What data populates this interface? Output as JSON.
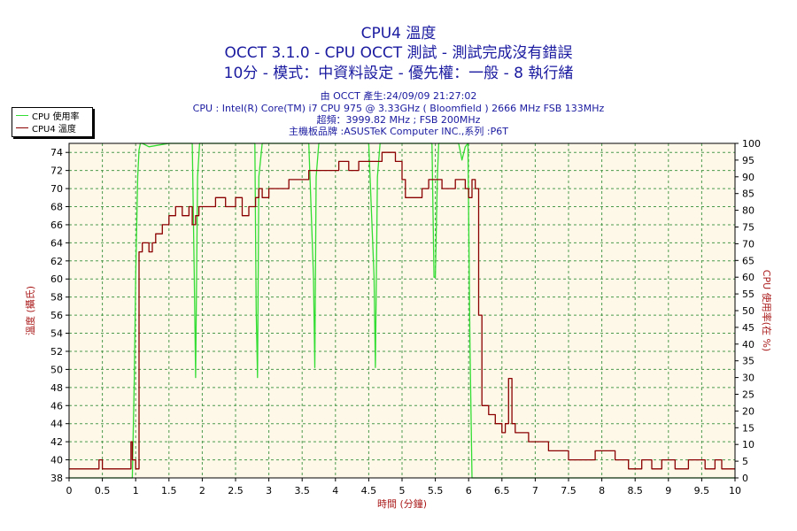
{
  "header": {
    "title": "CPU4 溫度",
    "subtitle1": "OCCT 3.1.0 - CPU OCCT 測試 - 測試完成沒有錯誤",
    "subtitle2": "10分 - 模式：中資料設定 - 優先權：一般 - 8 執行緒",
    "info1": "由 OCCT 產生:24/09/09 21:27:02",
    "info2": "CPU : Intel(R) Core(TM) i7 CPU 975 @ 3.33GHz ( Bloomfield ) 2666 MHz FSB 133MHz",
    "info3": "超頻：3999.82 MHz ; FSB 200MHz",
    "info4": "主機板品牌 :ASUSTeK Computer INC.,系列 :P6T"
  },
  "colors": {
    "cpu_usage": "#33dd33",
    "temperature": "#8b0000",
    "plot_bg": "#fdf8e8",
    "grid": "#4d9a4d",
    "title": "#1a1aa0",
    "axis_title": "#aa1a1a"
  },
  "chart_data": {
    "type": "line",
    "xlabel": "時間 (分鐘)",
    "ylabel_left": "溫度 (攝氏)",
    "ylabel_right": "CPU 使用率(在 %)",
    "xlim": [
      0,
      10
    ],
    "ylim_left": [
      38,
      75
    ],
    "ylim_right": [
      0,
      100
    ],
    "x_ticks": [
      "0",
      "0.5",
      "1",
      "1.5",
      "2",
      "2.5",
      "3",
      "3.5",
      "4",
      "4.5",
      "5",
      "5.5",
      "6",
      "6.5",
      "7",
      "7.5",
      "8",
      "8.5",
      "9",
      "9.5",
      "10"
    ],
    "y_left_ticks": [
      "38",
      "40",
      "42",
      "44",
      "46",
      "48",
      "50",
      "52",
      "54",
      "56",
      "58",
      "60",
      "62",
      "64",
      "66",
      "68",
      "70",
      "72",
      "74"
    ],
    "y_right_ticks": [
      "0",
      "5",
      "10",
      "15",
      "20",
      "25",
      "30",
      "35",
      "40",
      "45",
      "50",
      "55",
      "60",
      "65",
      "70",
      "75",
      "80",
      "85",
      "90",
      "95",
      "100"
    ],
    "grid": true,
    "legend_position": "top-left",
    "series": [
      {
        "name": "CPU 使用率",
        "axis": "right",
        "x": [
          0,
          0.95,
          0.98,
          1.0,
          1.03,
          1.05,
          1.07,
          1.1,
          1.2,
          1.5,
          1.85,
          1.88,
          1.9,
          1.93,
          1.96,
          2.5,
          2.79,
          2.81,
          2.83,
          2.85,
          2.9,
          3.0,
          3.6,
          3.67,
          3.69,
          3.71,
          3.75,
          3.8,
          4.5,
          4.58,
          4.6,
          4.63,
          4.67,
          4.7,
          5.0,
          5.45,
          5.48,
          5.5,
          5.53,
          5.55,
          5.6,
          5.85,
          5.88,
          5.9,
          5.95,
          5.99,
          6.02,
          6.05,
          10
        ],
        "y": [
          0,
          0,
          30,
          60,
          90,
          98,
          100,
          100,
          99,
          100,
          100,
          60,
          30,
          90,
          100,
          100,
          100,
          50,
          30,
          90,
          100,
          100,
          100,
          60,
          33,
          90,
          100,
          100,
          100,
          60,
          33,
          90,
          100,
          100,
          100,
          100,
          60,
          60,
          90,
          100,
          100,
          100,
          97,
          95,
          99,
          100,
          40,
          0,
          0
        ]
      },
      {
        "name": "CPU4 溫度",
        "axis": "left",
        "x": [
          0,
          0.4,
          0.45,
          0.5,
          0.9,
          0.93,
          0.95,
          1.0,
          1.05,
          1.1,
          1.2,
          1.25,
          1.3,
          1.4,
          1.5,
          1.6,
          1.7,
          1.8,
          1.85,
          1.9,
          1.95,
          2.1,
          2.2,
          2.35,
          2.5,
          2.6,
          2.7,
          2.8,
          2.85,
          2.9,
          3.0,
          3.15,
          3.3,
          3.6,
          3.9,
          4.05,
          4.2,
          4.35,
          4.5,
          4.7,
          4.9,
          5.0,
          5.05,
          5.3,
          5.4,
          5.6,
          5.8,
          5.95,
          6.0,
          6.05,
          6.1,
          6.15,
          6.2,
          6.3,
          6.4,
          6.5,
          6.55,
          6.6,
          6.65,
          6.7,
          6.9,
          7.2,
          7.5,
          7.8,
          7.9,
          8.2,
          8.4,
          8.6,
          8.75,
          8.9,
          9.1,
          9.3,
          9.55,
          9.7,
          9.8,
          10
        ],
        "y": [
          39,
          39,
          40,
          39,
          39,
          42,
          40,
          39,
          63,
          64,
          63,
          64,
          65,
          66,
          67,
          68,
          67,
          68,
          66,
          67,
          68,
          68,
          69,
          68,
          69,
          67,
          68,
          69,
          70,
          69,
          70,
          70,
          71,
          72,
          72,
          73,
          72,
          73,
          73,
          74,
          73,
          71,
          69,
          70,
          71,
          70,
          71,
          70,
          69,
          71,
          70,
          56,
          46,
          45,
          44,
          43,
          44,
          49,
          44,
          43,
          42,
          41,
          40,
          40,
          41,
          40,
          39,
          40,
          39,
          40,
          39,
          40,
          39,
          40,
          39,
          39
        ]
      }
    ]
  }
}
